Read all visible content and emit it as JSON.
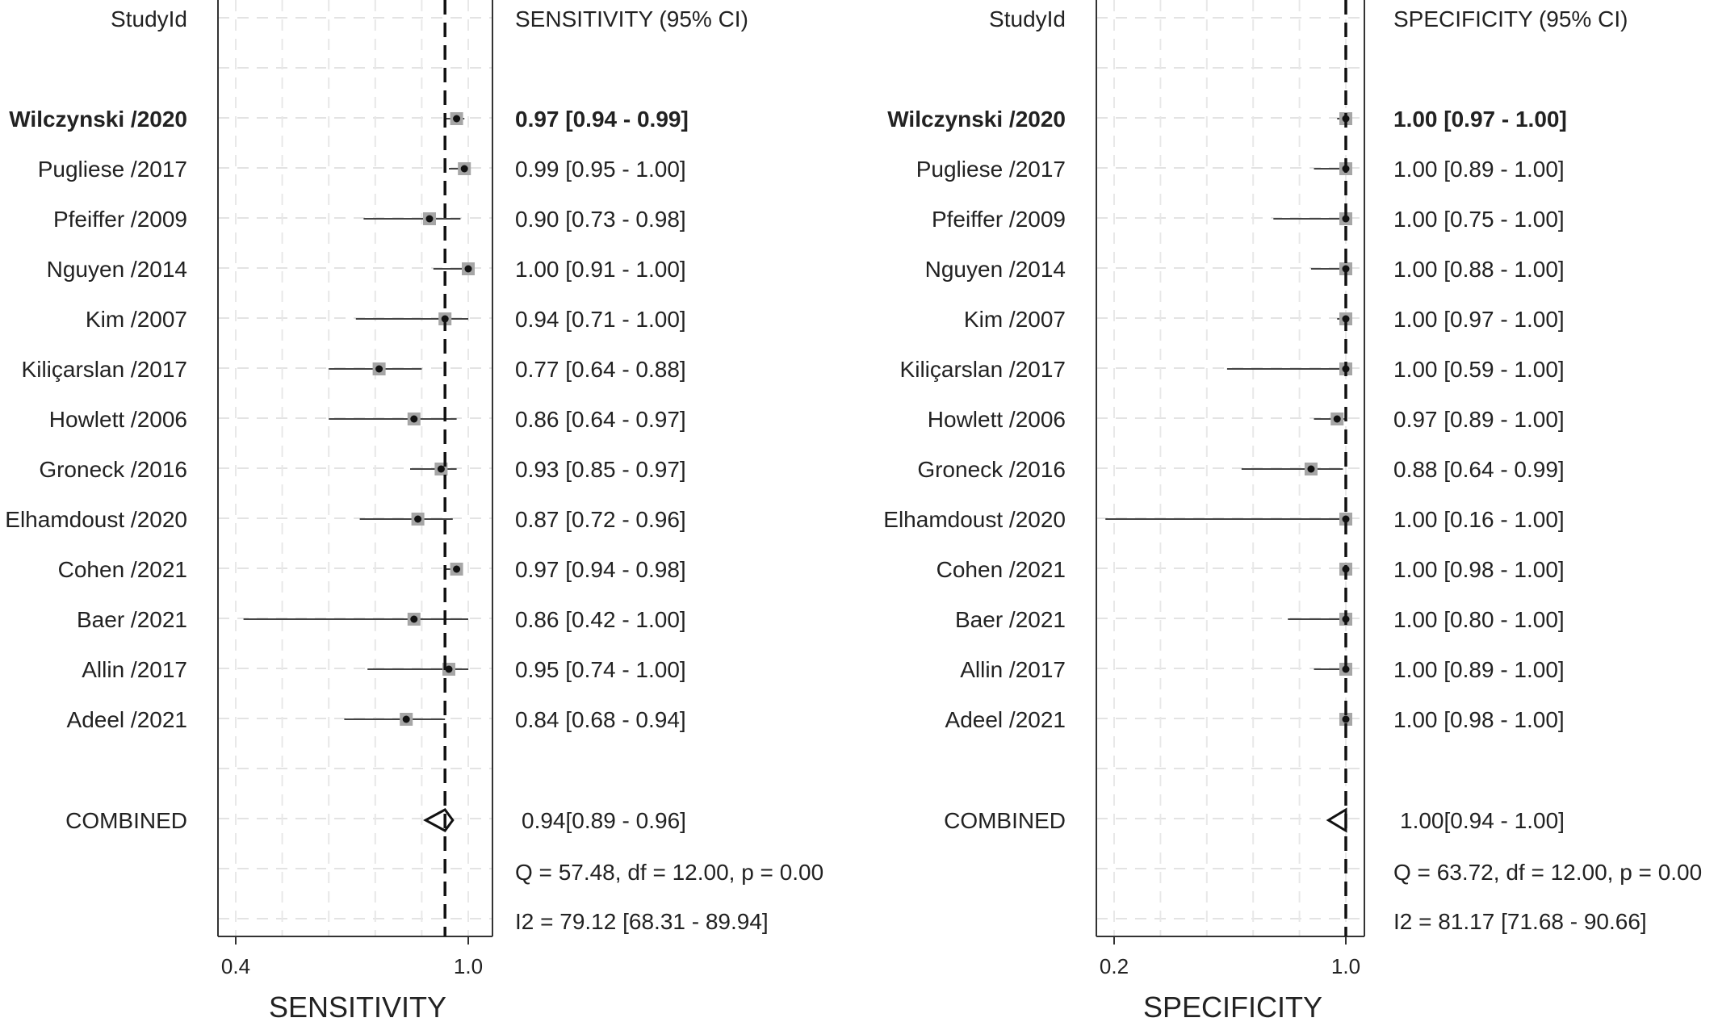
{
  "chart_data": [
    {
      "type": "forest",
      "study_header": "StudyId",
      "stat_header": "SENSITIVITY (95% CI)",
      "xlabel": "SENSITIVITY",
      "xlim": [
        0.4,
        1.0
      ],
      "xticks": [
        "0.4",
        "1.0"
      ],
      "summary_line": 0.94,
      "studies": [
        {
          "study": "Wilczynski /2020",
          "est": 0.97,
          "lo": 0.94,
          "hi": 0.99,
          "label": "0.97 [0.94 - 0.99]"
        },
        {
          "study": "Pugliese /2017",
          "est": 0.99,
          "lo": 0.95,
          "hi": 1.0,
          "label": "0.99 [0.95 - 1.00]"
        },
        {
          "study": "Pfeiffer /2009",
          "est": 0.9,
          "lo": 0.73,
          "hi": 0.98,
          "label": "0.90 [0.73 - 0.98]"
        },
        {
          "study": "Nguyen /2014",
          "est": 1.0,
          "lo": 0.91,
          "hi": 1.0,
          "label": "1.00 [0.91 - 1.00]"
        },
        {
          "study": "Kim /2007",
          "est": 0.94,
          "lo": 0.71,
          "hi": 1.0,
          "label": "0.94 [0.71 - 1.00]"
        },
        {
          "study": "Kiliçarslan /2017",
          "est": 0.77,
          "lo": 0.64,
          "hi": 0.88,
          "label": "0.77 [0.64 - 0.88]"
        },
        {
          "study": "Howlett /2006",
          "est": 0.86,
          "lo": 0.64,
          "hi": 0.97,
          "label": "0.86 [0.64 - 0.97]"
        },
        {
          "study": "Groneck /2016",
          "est": 0.93,
          "lo": 0.85,
          "hi": 0.97,
          "label": "0.93 [0.85 - 0.97]"
        },
        {
          "study": "Elhamdoust /2020",
          "est": 0.87,
          "lo": 0.72,
          "hi": 0.96,
          "label": "0.87 [0.72 - 0.96]"
        },
        {
          "study": "Cohen /2021",
          "est": 0.97,
          "lo": 0.94,
          "hi": 0.98,
          "label": "0.97 [0.94 - 0.98]"
        },
        {
          "study": "Baer /2021",
          "est": 0.86,
          "lo": 0.42,
          "hi": 1.0,
          "label": "0.86 [0.42 - 1.00]"
        },
        {
          "study": "Allin /2017",
          "est": 0.95,
          "lo": 0.74,
          "hi": 1.0,
          "label": "0.95 [0.74 - 1.00]"
        },
        {
          "study": "Adeel /2021",
          "est": 0.84,
          "lo": 0.68,
          "hi": 0.94,
          "label": "0.84 [0.68 - 0.94]"
        }
      ],
      "combined": {
        "study": "COMBINED",
        "est": 0.94,
        "lo": 0.89,
        "hi": 0.96,
        "label": "0.94[0.89 - 0.96]"
      },
      "heterogeneity": [
        "Q = 57.48, df = 12.00, p =  0.00",
        "I2 = 79.12 [68.31 - 89.94]"
      ]
    },
    {
      "type": "forest",
      "study_header": "StudyId",
      "stat_header": "SPECIFICITY (95% CI)",
      "xlabel": "SPECIFICITY",
      "xlim": [
        0.2,
        1.0
      ],
      "xticks": [
        "0.2",
        "1.0"
      ],
      "summary_line": 1.0,
      "studies": [
        {
          "study": "Wilczynski /2020",
          "est": 1.0,
          "lo": 0.97,
          "hi": 1.0,
          "label": "1.00 [0.97 - 1.00]"
        },
        {
          "study": "Pugliese /2017",
          "est": 1.0,
          "lo": 0.89,
          "hi": 1.0,
          "label": "1.00 [0.89 - 1.00]"
        },
        {
          "study": "Pfeiffer /2009",
          "est": 1.0,
          "lo": 0.75,
          "hi": 1.0,
          "label": "1.00 [0.75 - 1.00]"
        },
        {
          "study": "Nguyen /2014",
          "est": 1.0,
          "lo": 0.88,
          "hi": 1.0,
          "label": "1.00 [0.88 - 1.00]"
        },
        {
          "study": "Kim /2007",
          "est": 1.0,
          "lo": 0.97,
          "hi": 1.0,
          "label": "1.00 [0.97 - 1.00]"
        },
        {
          "study": "Kiliçarslan /2017",
          "est": 1.0,
          "lo": 0.59,
          "hi": 1.0,
          "label": "1.00 [0.59 - 1.00]"
        },
        {
          "study": "Howlett /2006",
          "est": 0.97,
          "lo": 0.89,
          "hi": 1.0,
          "label": "0.97 [0.89 - 1.00]"
        },
        {
          "study": "Groneck /2016",
          "est": 0.88,
          "lo": 0.64,
          "hi": 0.99,
          "label": "0.88 [0.64 - 0.99]"
        },
        {
          "study": "Elhamdoust /2020",
          "est": 1.0,
          "lo": 0.16,
          "hi": 1.0,
          "label": "1.00 [0.16 - 1.00]"
        },
        {
          "study": "Cohen /2021",
          "est": 1.0,
          "lo": 0.98,
          "hi": 1.0,
          "label": "1.00 [0.98 - 1.00]"
        },
        {
          "study": "Baer /2021",
          "est": 1.0,
          "lo": 0.8,
          "hi": 1.0,
          "label": "1.00 [0.80 - 1.00]"
        },
        {
          "study": "Allin /2017",
          "est": 1.0,
          "lo": 0.89,
          "hi": 1.0,
          "label": "1.00 [0.89 - 1.00]"
        },
        {
          "study": "Adeel /2021",
          "est": 1.0,
          "lo": 0.98,
          "hi": 1.0,
          "label": "1.00 [0.98 - 1.00]"
        }
      ],
      "combined": {
        "study": "COMBINED",
        "est": 1.0,
        "lo": 0.94,
        "hi": 1.0,
        "label": "1.00[0.94 - 1.00]"
      },
      "heterogeneity": [
        "Q = 63.72, df = 12.00, p =  0.00",
        "I2 = 81.17 [71.68 - 90.66]"
      ]
    }
  ]
}
